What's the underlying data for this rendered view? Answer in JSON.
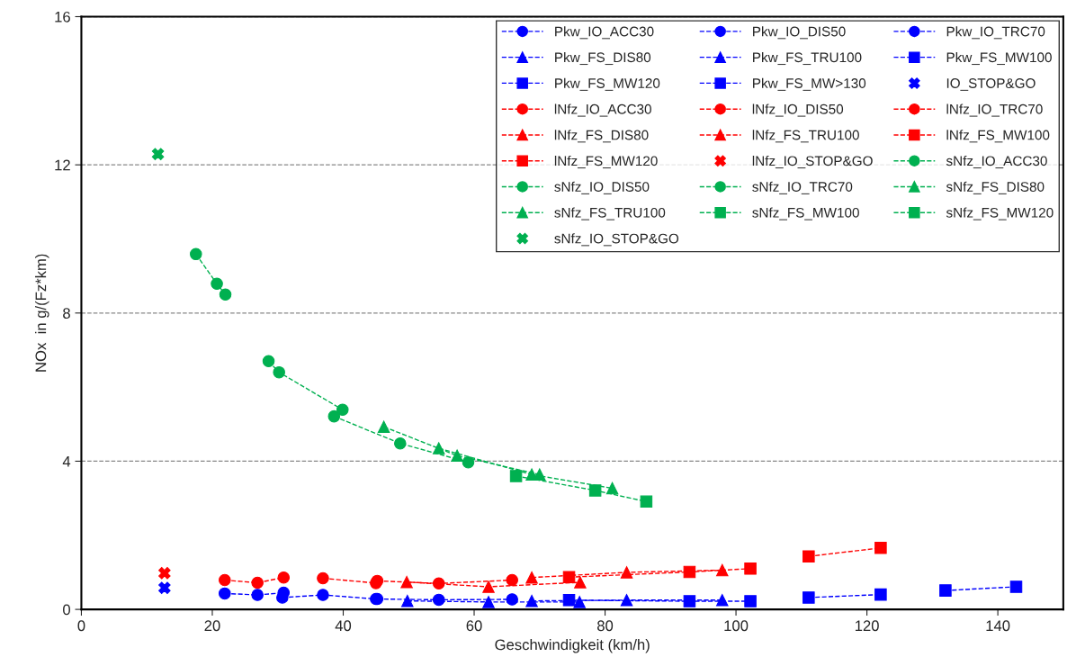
{
  "chart_data": {
    "type": "line",
    "xlabel": "Geschwindigkeit (km/h)",
    "ylabel": "NOx  in g/(Fz*km)",
    "xlim": [
      0,
      150
    ],
    "xticks": [
      0,
      20,
      40,
      60,
      80,
      100,
      120,
      140
    ],
    "ylim": [
      0,
      16
    ],
    "yticks": [
      0,
      4,
      8,
      12,
      16
    ],
    "grid": "y",
    "legend": "top right",
    "line_style": "dashed",
    "series": [
      {
        "name": "Pkw_IO_ACC30",
        "color": "#0000ff",
        "marker": "circle",
        "x": [
          21.9,
          26.9,
          30.9
        ],
        "values": [
          0.43,
          0.39,
          0.45
        ]
      },
      {
        "name": "Pkw_IO_DIS50",
        "color": "#0000ff",
        "marker": "circle",
        "x": [
          30.7,
          36.9,
          45.0
        ],
        "values": [
          0.32,
          0.39,
          0.28
        ]
      },
      {
        "name": "Pkw_IO_TRC70",
        "color": "#0000ff",
        "marker": "circle",
        "x": [
          45.2,
          54.6,
          65.8
        ],
        "values": [
          0.28,
          0.26,
          0.27
        ]
      },
      {
        "name": "Pkw_FS_DIS80",
        "color": "#0000ff",
        "marker": "triangle",
        "x": [
          49.8,
          62.2,
          76.1
        ],
        "values": [
          0.23,
          0.2,
          0.2
        ]
      },
      {
        "name": "Pkw_FS_TRU100",
        "color": "#0000ff",
        "marker": "triangle",
        "x": [
          68.8,
          83.3,
          97.9
        ],
        "values": [
          0.23,
          0.25,
          0.25
        ]
      },
      {
        "name": "Pkw_FS_MW100",
        "color": "#0000ff",
        "marker": "square",
        "x": [
          74.5,
          92.9,
          102.2
        ],
        "values": [
          0.25,
          0.22,
          0.22
        ]
      },
      {
        "name": "Pkw_FS_MW120",
        "color": "#0000ff",
        "marker": "square",
        "x": [
          111.1,
          122.1
        ],
        "values": [
          0.32,
          0.4
        ]
      },
      {
        "name": "Pkw_FS_MW>130",
        "color": "#0000ff",
        "marker": "square",
        "x": [
          132.0,
          142.8
        ],
        "values": [
          0.51,
          0.61
        ]
      },
      {
        "name": "IO_STOP&GO",
        "color": "#0000ff",
        "marker": "cross",
        "line_style": "none",
        "x": [
          12.7
        ],
        "values": [
          0.58
        ]
      },
      {
        "name": "lNfz_IO_ACC30",
        "color": "#ff0000",
        "marker": "circle",
        "x": [
          21.9,
          26.9,
          30.9
        ],
        "values": [
          0.79,
          0.72,
          0.86
        ]
      },
      {
        "name": "lNfz_IO_DIS50",
        "color": "#ff0000",
        "marker": "circle",
        "x": [
          36.9,
          45.0
        ],
        "values": [
          0.84,
          0.71
        ]
      },
      {
        "name": "lNfz_IO_TRC70",
        "color": "#ff0000",
        "marker": "circle",
        "x": [
          45.2,
          54.6,
          65.8
        ],
        "values": [
          0.77,
          0.7,
          0.79
        ]
      },
      {
        "name": "lNfz_FS_DIS80",
        "color": "#ff0000",
        "marker": "triangle",
        "x": [
          49.7,
          62.2,
          76.2
        ],
        "values": [
          0.74,
          0.61,
          0.73
        ]
      },
      {
        "name": "lNfz_FS_TRU100",
        "color": "#ff0000",
        "marker": "triangle",
        "x": [
          68.8,
          83.3,
          97.9
        ],
        "values": [
          0.86,
          1.0,
          1.06
        ]
      },
      {
        "name": "lNfz_FS_MW100",
        "color": "#ff0000",
        "marker": "square",
        "x": [
          74.5,
          92.9,
          102.2
        ],
        "values": [
          0.87,
          1.01,
          1.1
        ]
      },
      {
        "name": "lNfz_FS_MW120",
        "color": "#ff0000",
        "marker": "square",
        "x": [
          111.1,
          122.1
        ],
        "values": [
          1.43,
          1.66
        ]
      },
      {
        "name": "lNfz_IO_STOP&GO",
        "color": "#ff0000",
        "marker": "cross",
        "line_style": "none",
        "x": [
          12.7
        ],
        "values": [
          0.98
        ]
      },
      {
        "name": "sNfz_IO_ACC30",
        "color": "#00b050",
        "marker": "circle",
        "x": [
          17.5,
          20.7,
          22.0
        ],
        "values": [
          9.59,
          8.79,
          8.5
        ]
      },
      {
        "name": "sNfz_IO_DIS50",
        "color": "#00b050",
        "marker": "circle",
        "x": [
          28.6,
          30.2,
          39.9
        ],
        "values": [
          6.7,
          6.4,
          5.39
        ]
      },
      {
        "name": "sNfz_IO_TRC70",
        "color": "#00b050",
        "marker": "circle",
        "x": [
          38.6,
          48.7,
          59.1
        ],
        "values": [
          5.21,
          4.48,
          3.97
        ]
      },
      {
        "name": "sNfz_FS_DIS80",
        "color": "#00b050",
        "marker": "triangle",
        "x": [
          46.2,
          57.4,
          70.0
        ],
        "values": [
          4.93,
          4.15,
          3.64
        ]
      },
      {
        "name": "sNfz_FS_TRU100",
        "color": "#00b050",
        "marker": "triangle",
        "x": [
          54.6,
          68.8,
          81.1
        ],
        "values": [
          4.35,
          3.64,
          3.27
        ]
      },
      {
        "name": "sNfz_FS_MW100",
        "color": "#00b050",
        "marker": "square",
        "x": [
          66.4,
          78.5,
          86.3
        ],
        "values": [
          3.6,
          3.21,
          2.91
        ]
      },
      {
        "name": "sNfz_FS_MW120",
        "color": "#00b050",
        "marker": "square"
      },
      {
        "name": "sNfz_IO_STOP&GO",
        "color": "#00b050",
        "marker": "cross",
        "line_style": "none",
        "x": [
          11.7
        ],
        "values": [
          12.29
        ]
      }
    ]
  }
}
